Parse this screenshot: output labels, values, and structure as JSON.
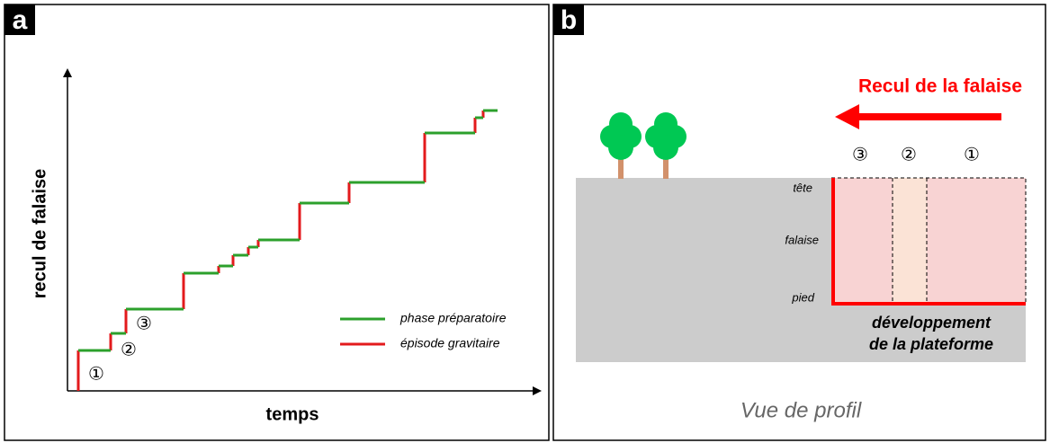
{
  "panels": [
    {
      "label": "a",
      "y_axis_label": "recul de falaise",
      "x_axis_label": "temps",
      "step_labels": [
        "①",
        "②",
        "③"
      ],
      "legend": [
        "phase préparatoire",
        "épisode gravitaire"
      ]
    },
    {
      "label": "b",
      "title": "Recul de la falaise",
      "zone_labels": [
        "③",
        "②",
        "①"
      ],
      "levels": [
        "tête",
        "falaise",
        "pied"
      ],
      "platform_label": [
        "développement",
        "de la plateforme"
      ],
      "caption": "Vue de profil"
    }
  ]
}
